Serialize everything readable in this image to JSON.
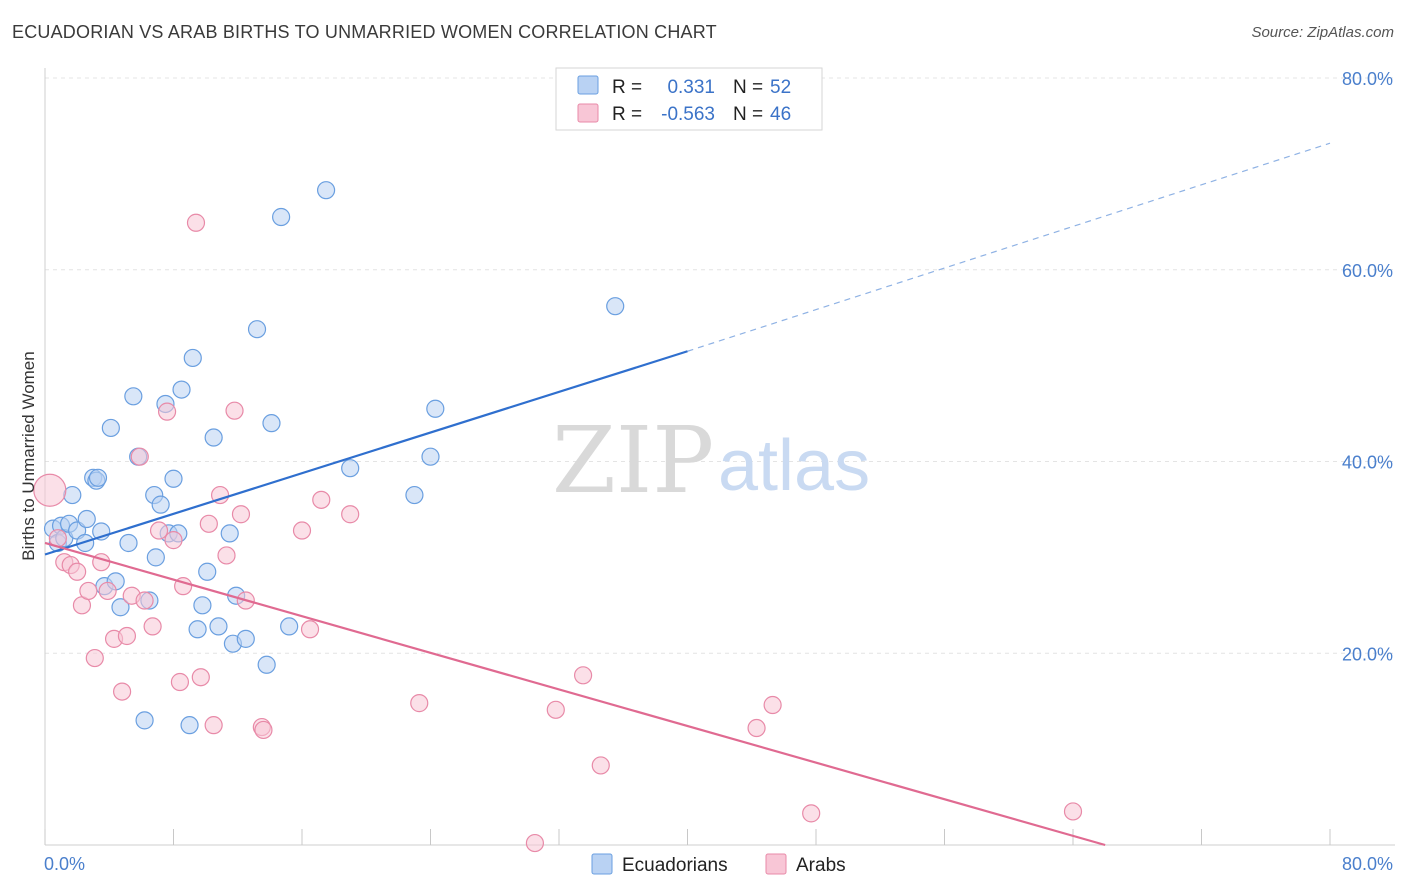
{
  "header": {
    "title": "ECUADORIAN VS ARAB BIRTHS TO UNMARRIED WOMEN CORRELATION CHART",
    "source": "Source: ZipAtlas.com"
  },
  "watermark": {
    "zip": "ZIP",
    "atlas": "atlas"
  },
  "legend_top": {
    "rows": [
      {
        "r_label": "R =",
        "r_value": "0.331",
        "n_label": "N =",
        "n_value": "52",
        "color": "#6a9fe0",
        "fill": "#b9d2f3"
      },
      {
        "r_label": "R =",
        "r_value": "-0.563",
        "n_label": "N =",
        "n_value": "46",
        "color": "#e88aa8",
        "fill": "#f8c6d6"
      }
    ]
  },
  "legend_bottom": [
    {
      "label": "Ecuadorians",
      "color": "#6a9fe0",
      "fill": "#b9d2f3"
    },
    {
      "label": "Arabs",
      "color": "#e88aa8",
      "fill": "#f8c6d6"
    }
  ],
  "chart_data": {
    "type": "scatter",
    "title": "ECUADORIAN VS ARAB BIRTHS TO UNMARRIED WOMEN CORRELATION CHART",
    "xlabel": "",
    "ylabel": "Births to Unmarried Women",
    "xlim": [
      0,
      80
    ],
    "ylim": [
      0,
      80
    ],
    "x_tick_labels": [
      "0.0%",
      "80.0%"
    ],
    "y_tick_labels": [
      "20.0%",
      "40.0%",
      "60.0%",
      "80.0%"
    ],
    "y_ticks": [
      20,
      40,
      60,
      80
    ],
    "grid": true,
    "legend_placement": "top-center",
    "series": [
      {
        "name": "Ecuadorians",
        "color": "#6a9fe0",
        "fill": "#b9d2f3",
        "trend": {
          "x": [
            0,
            40
          ],
          "y": [
            30.3,
            51.5
          ],
          "dashed_to": [
            80,
            73.2
          ]
        },
        "points": [
          [
            0.5,
            33.0
          ],
          [
            0.8,
            31.5
          ],
          [
            1.0,
            33.3
          ],
          [
            1.2,
            32.0
          ],
          [
            1.5,
            33.5
          ],
          [
            1.7,
            36.5
          ],
          [
            2.0,
            32.8
          ],
          [
            2.5,
            31.5
          ],
          [
            2.6,
            34.0
          ],
          [
            3.0,
            38.3
          ],
          [
            3.2,
            38.0
          ],
          [
            3.3,
            38.3
          ],
          [
            3.5,
            32.7
          ],
          [
            3.7,
            27.0
          ],
          [
            4.1,
            43.5
          ],
          [
            4.4,
            27.5
          ],
          [
            4.7,
            24.8
          ],
          [
            5.2,
            31.5
          ],
          [
            5.5,
            46.8
          ],
          [
            5.8,
            40.5
          ],
          [
            6.2,
            13.0
          ],
          [
            6.5,
            25.5
          ],
          [
            6.8,
            36.5
          ],
          [
            6.9,
            30.0
          ],
          [
            7.2,
            35.5
          ],
          [
            7.5,
            46.0
          ],
          [
            7.7,
            32.5
          ],
          [
            8.0,
            38.2
          ],
          [
            8.3,
            32.5
          ],
          [
            8.5,
            47.5
          ],
          [
            9.0,
            12.5
          ],
          [
            9.2,
            50.8
          ],
          [
            9.5,
            22.5
          ],
          [
            9.8,
            25.0
          ],
          [
            10.1,
            28.5
          ],
          [
            10.5,
            42.5
          ],
          [
            10.8,
            22.8
          ],
          [
            11.5,
            32.5
          ],
          [
            11.7,
            21.0
          ],
          [
            11.9,
            26.0
          ],
          [
            12.5,
            21.5
          ],
          [
            13.2,
            53.8
          ],
          [
            13.8,
            18.8
          ],
          [
            14.1,
            44.0
          ],
          [
            14.7,
            65.5
          ],
          [
            15.2,
            22.8
          ],
          [
            17.5,
            68.3
          ],
          [
            19.0,
            39.3
          ],
          [
            23.0,
            36.5
          ],
          [
            24.0,
            40.5
          ],
          [
            24.3,
            45.5
          ],
          [
            35.5,
            56.2
          ]
        ]
      },
      {
        "name": "Arabs",
        "color": "#e88aa8",
        "fill": "#f8c6d6",
        "trend": {
          "x": [
            0,
            66
          ],
          "y": [
            31.5,
            0
          ]
        },
        "points": [
          [
            0.3,
            37.0
          ],
          [
            0.8,
            32.0
          ],
          [
            1.2,
            29.5
          ],
          [
            1.6,
            29.2
          ],
          [
            2.0,
            28.5
          ],
          [
            2.3,
            25.0
          ],
          [
            2.7,
            26.5
          ],
          [
            3.1,
            19.5
          ],
          [
            3.5,
            29.5
          ],
          [
            3.9,
            26.5
          ],
          [
            4.3,
            21.5
          ],
          [
            4.8,
            16.0
          ],
          [
            5.1,
            21.8
          ],
          [
            5.4,
            26.0
          ],
          [
            5.9,
            40.5
          ],
          [
            6.2,
            25.5
          ],
          [
            6.7,
            22.8
          ],
          [
            7.1,
            32.8
          ],
          [
            7.6,
            45.2
          ],
          [
            8.0,
            31.8
          ],
          [
            8.4,
            17.0
          ],
          [
            8.6,
            27.0
          ],
          [
            9.4,
            64.9
          ],
          [
            9.7,
            17.5
          ],
          [
            10.2,
            33.5
          ],
          [
            10.5,
            12.5
          ],
          [
            10.9,
            36.5
          ],
          [
            11.3,
            30.2
          ],
          [
            11.8,
            45.3
          ],
          [
            12.2,
            34.5
          ],
          [
            12.5,
            25.5
          ],
          [
            13.5,
            12.3
          ],
          [
            13.6,
            12.0
          ],
          [
            16.0,
            32.8
          ],
          [
            16.5,
            22.5
          ],
          [
            17.2,
            36.0
          ],
          [
            19.0,
            34.5
          ],
          [
            23.3,
            14.8
          ],
          [
            30.5,
            0.2
          ],
          [
            31.8,
            14.1
          ],
          [
            33.5,
            17.7
          ],
          [
            34.6,
            8.3
          ],
          [
            44.3,
            12.2
          ],
          [
            45.3,
            14.6
          ],
          [
            47.7,
            3.3
          ],
          [
            64.0,
            3.5
          ]
        ]
      }
    ]
  }
}
